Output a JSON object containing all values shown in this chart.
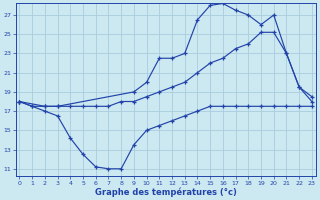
{
  "xlabel": "Graphe des températures (°c)",
  "bg_color": "#cce8f0",
  "grid_color": "#aaccdd",
  "line_color": "#2244aa",
  "x_ticks": [
    0,
    1,
    2,
    3,
    4,
    5,
    6,
    7,
    8,
    9,
    10,
    11,
    12,
    13,
    14,
    15,
    16,
    17,
    18,
    19,
    20,
    21,
    22,
    23
  ],
  "y_ticks": [
    11,
    13,
    15,
    17,
    19,
    21,
    23,
    25,
    27
  ],
  "xlim": [
    -0.3,
    23.3
  ],
  "ylim": [
    10.2,
    28.2
  ],
  "line1_x": [
    0,
    1,
    2,
    3,
    4,
    5,
    6,
    7,
    8,
    9,
    10,
    11,
    12,
    13,
    14,
    15,
    16,
    17,
    18,
    19,
    20,
    21,
    22,
    23
  ],
  "line1_y": [
    18,
    17.5,
    17,
    16.5,
    14.2,
    12.5,
    11.2,
    11,
    11,
    13.5,
    15,
    15.5,
    16,
    16.5,
    17,
    17.5,
    17.5,
    17.5,
    17.5,
    17.5,
    17.5,
    17.5,
    17.5,
    17.5
  ],
  "line2_x": [
    0,
    1,
    2,
    3,
    4,
    5,
    6,
    7,
    8,
    9,
    10,
    11,
    12,
    13,
    14,
    15,
    16,
    17,
    18,
    19,
    20,
    21,
    22,
    23
  ],
  "line2_y": [
    18,
    17.5,
    17.5,
    17.5,
    17.5,
    17.5,
    17.5,
    17.5,
    18,
    18,
    18.5,
    19,
    19.5,
    20,
    21,
    22,
    22.5,
    23.5,
    24,
    25.2,
    25.2,
    23,
    19.5,
    18
  ],
  "line3_x": [
    0,
    2,
    3,
    9,
    10,
    11,
    12,
    13,
    14,
    15,
    16,
    17,
    18,
    19,
    20,
    21,
    22,
    23
  ],
  "line3_y": [
    18,
    17.5,
    17.5,
    19,
    20,
    22.5,
    22.5,
    23,
    26.5,
    28,
    28.2,
    27.5,
    27,
    26,
    27,
    23,
    19.5,
    18.5
  ]
}
